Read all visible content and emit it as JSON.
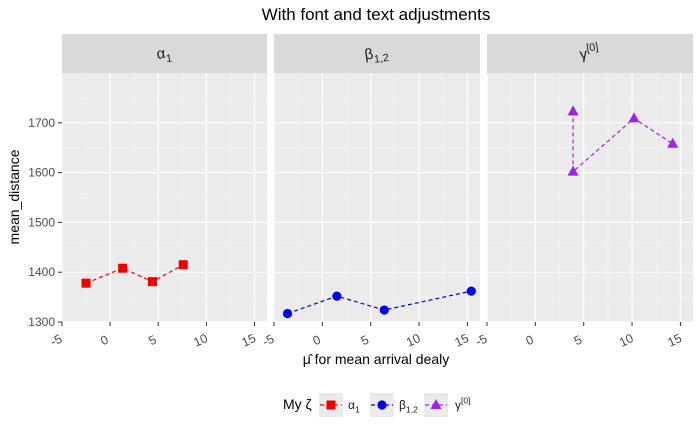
{
  "chart_data": {
    "type": "line",
    "title": "With font and text adjustments",
    "xlabel": "μ̂ for mean arrival dealy",
    "ylabel": "mean_distance",
    "xlim": [
      -5,
      16.3
    ],
    "ylim": [
      1300,
      1800
    ],
    "x_ticks": [
      -5,
      0,
      5,
      10,
      15
    ],
    "y_ticks": [
      1300,
      1400,
      1500,
      1600,
      1700
    ],
    "grid": true,
    "legend_position": "bottom",
    "legend_title": "My ζ",
    "facets": [
      {
        "label_base": "α",
        "label_sub": "1",
        "label_sup": ""
      },
      {
        "label_base": "β",
        "label_sub": "1,2",
        "label_sup": ""
      },
      {
        "label_base": "γ",
        "label_sub": "",
        "label_sup": "[0]"
      }
    ],
    "series": [
      {
        "legend_base": "α",
        "legend_sub": "1",
        "legend_sup": "",
        "color": "#ee0000",
        "marker": "square",
        "facet": 0,
        "x": [
          -2.5,
          1.3,
          4.4,
          7.6
        ],
        "y": [
          1378,
          1408,
          1381,
          1415
        ]
      },
      {
        "legend_base": "β",
        "legend_sub": "1,2",
        "legend_sup": "",
        "color": "#0000ee",
        "marker": "circle",
        "facet": 1,
        "x": [
          -3.6,
          1.5,
          6.4,
          15.4
        ],
        "y": [
          1317,
          1352,
          1324,
          1362
        ]
      },
      {
        "legend_base": "γ",
        "legend_sub": "",
        "legend_sup": "[0]",
        "color": "#a020f0",
        "marker": "triangle",
        "facet": 2,
        "x": [
          3.9,
          3.9,
          10.2,
          14.2
        ],
        "y": [
          1723,
          1602,
          1709,
          1658
        ]
      }
    ]
  }
}
